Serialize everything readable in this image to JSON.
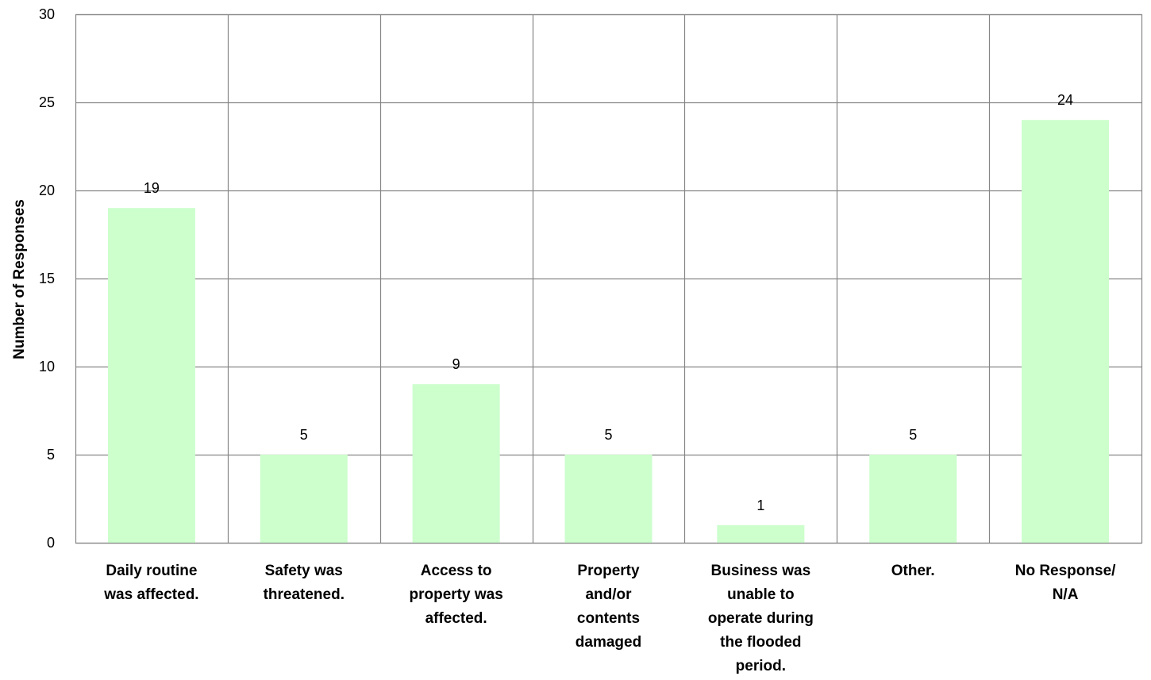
{
  "chart_data": {
    "type": "bar",
    "categories": [
      [
        "Daily routine",
        "was affected."
      ],
      [
        "Safety was",
        "threatened."
      ],
      [
        "Access to",
        "property was",
        "affected."
      ],
      [
        "Property",
        "and/or",
        "contents",
        "damaged"
      ],
      [
        "Business was",
        "unable to",
        "operate during",
        "the flooded",
        "period."
      ],
      [
        "Other."
      ],
      [
        "No Response/",
        "N/A"
      ]
    ],
    "values": [
      19,
      5,
      9,
      5,
      1,
      5,
      24
    ],
    "data_labels": [
      "19",
      "5",
      "9",
      "5",
      "1",
      "5",
      "24"
    ],
    "title": "",
    "xlabel": "",
    "ylabel": "Number of Responses",
    "ylim": [
      0,
      30
    ],
    "yticks": [
      0,
      5,
      10,
      15,
      20,
      25,
      30
    ],
    "ytick_labels": [
      "0",
      "5",
      "10",
      "15",
      "20",
      "25",
      "30"
    ],
    "grid": "both",
    "legend": "none",
    "colors": {
      "bar": "#ccffcc",
      "grid": "#868686",
      "text": "#000000"
    }
  }
}
